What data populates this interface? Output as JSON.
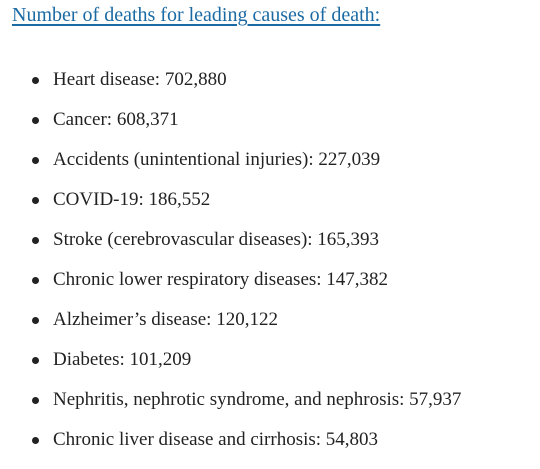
{
  "header": {
    "title": "Number of deaths for leading causes of death:"
  },
  "list": {
    "items": [
      "Heart disease: 702,880",
      "Cancer: 608,371",
      "Accidents (unintentional injuries): 227,039",
      "COVID-19: 186,552",
      "Stroke (cerebrovascular diseases): 165,393",
      "Chronic lower respiratory diseases: 147,382",
      "Alzheimer’s disease: 120,122",
      "Diabetes: 101,209",
      "Nephritis, nephrotic syndrome, and nephrosis: 57,937",
      "Chronic liver disease and cirrhosis: 54,803"
    ]
  }
}
